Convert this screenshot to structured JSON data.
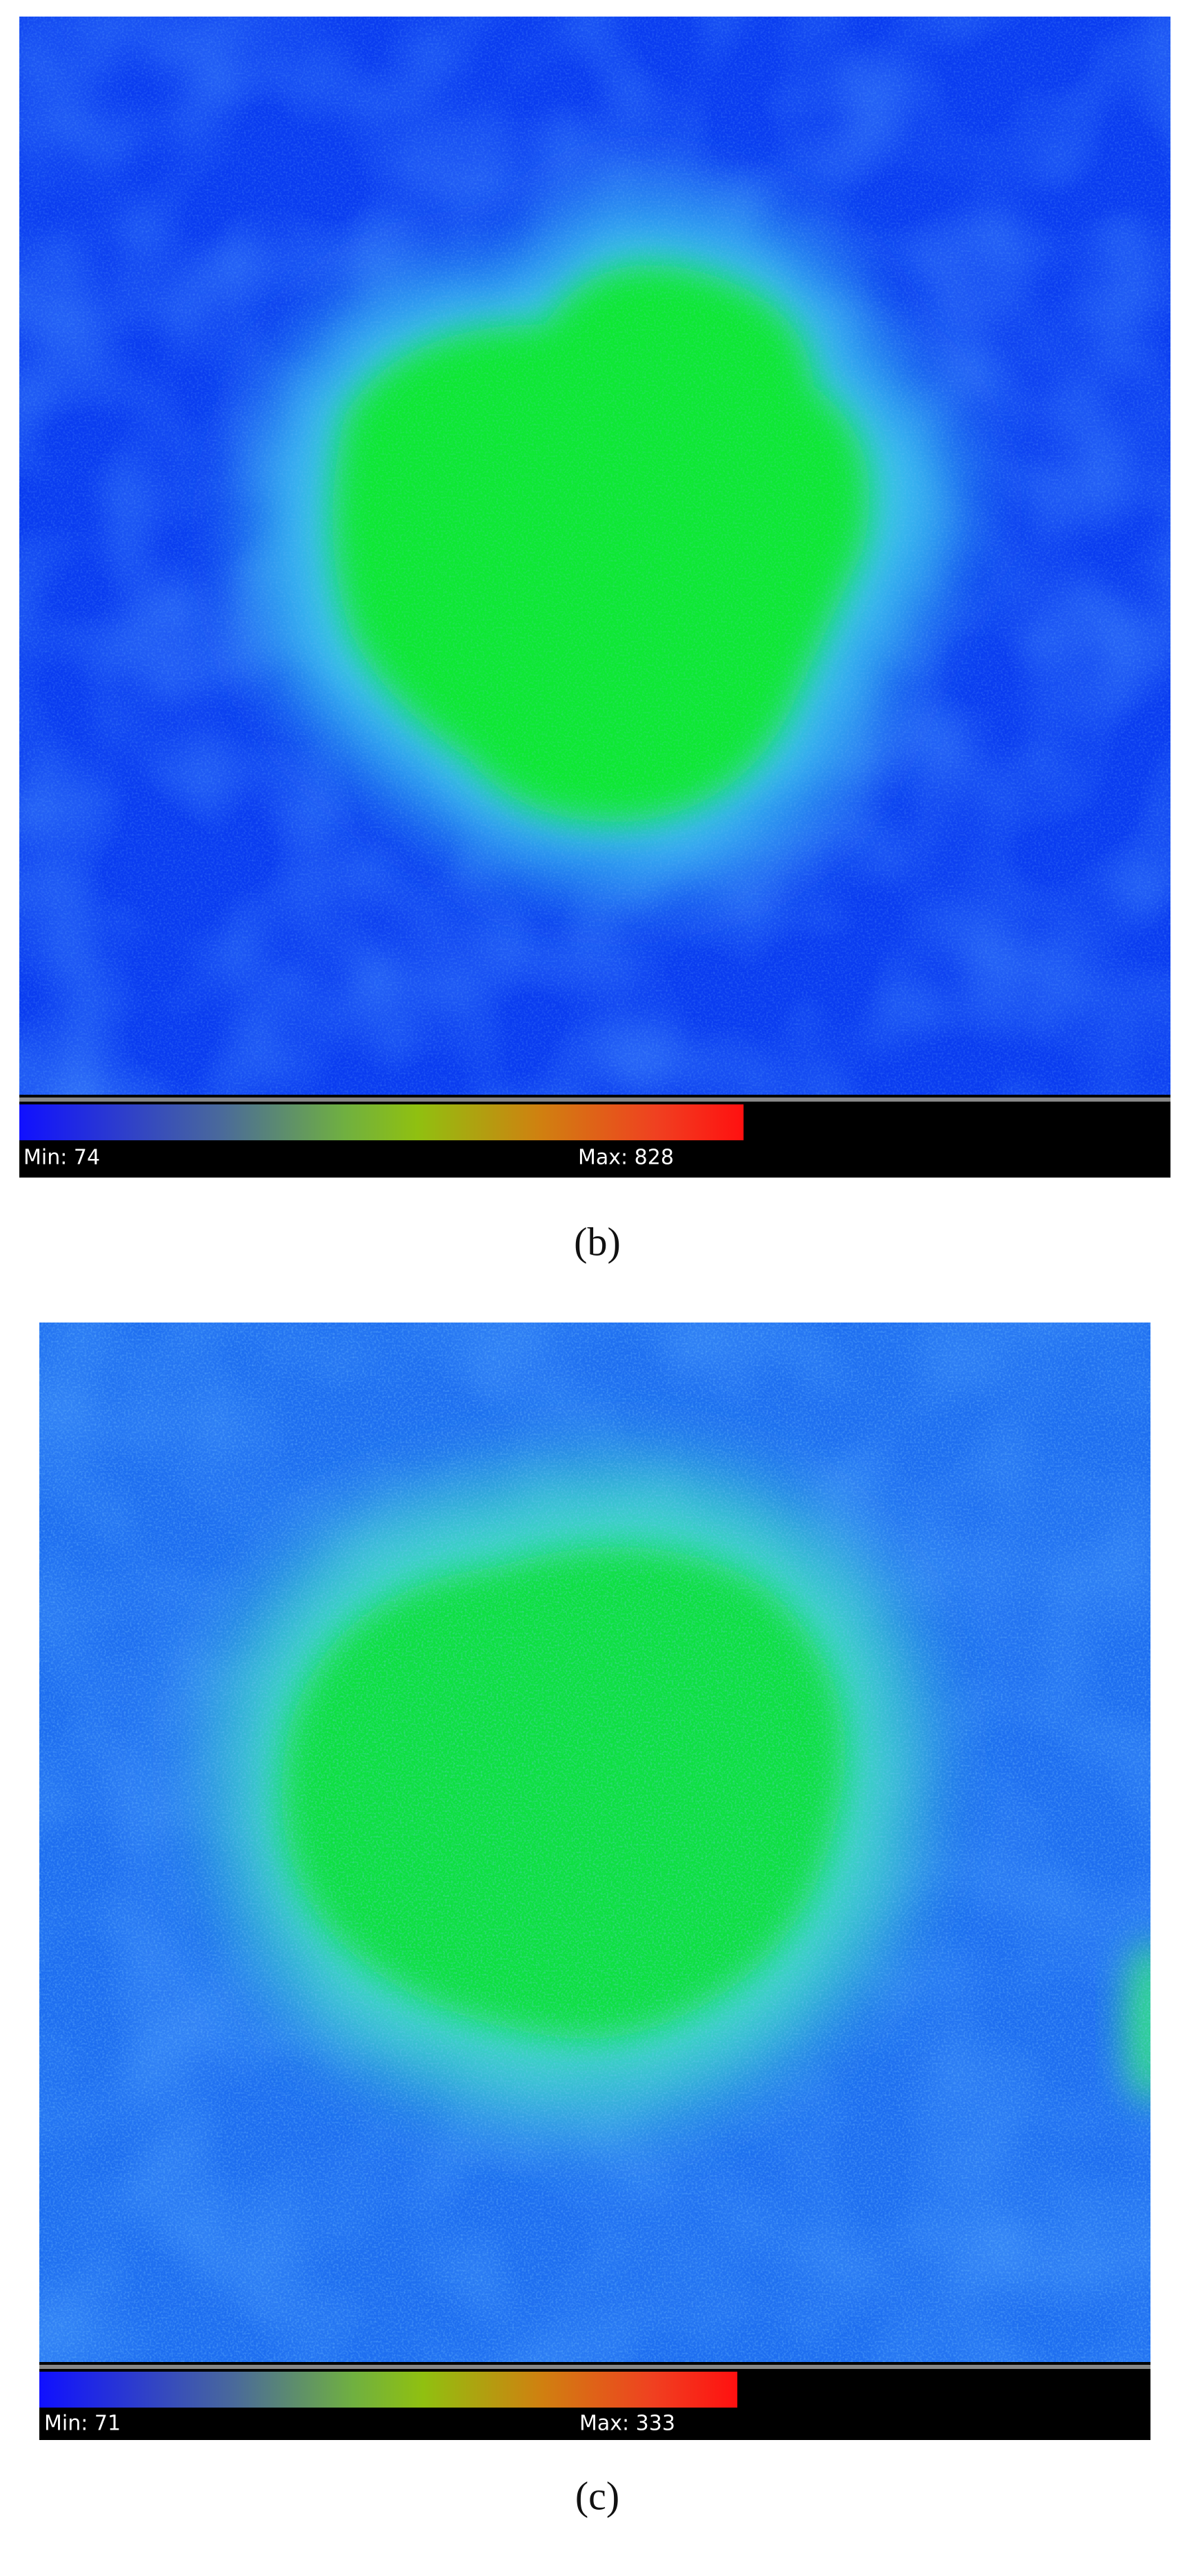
{
  "panels": [
    {
      "label": "(b)",
      "min": "Min: 74",
      "max": "Max: 828"
    },
    {
      "label": "(c)",
      "min": "Min: 71",
      "max": "Max: 333"
    }
  ]
}
